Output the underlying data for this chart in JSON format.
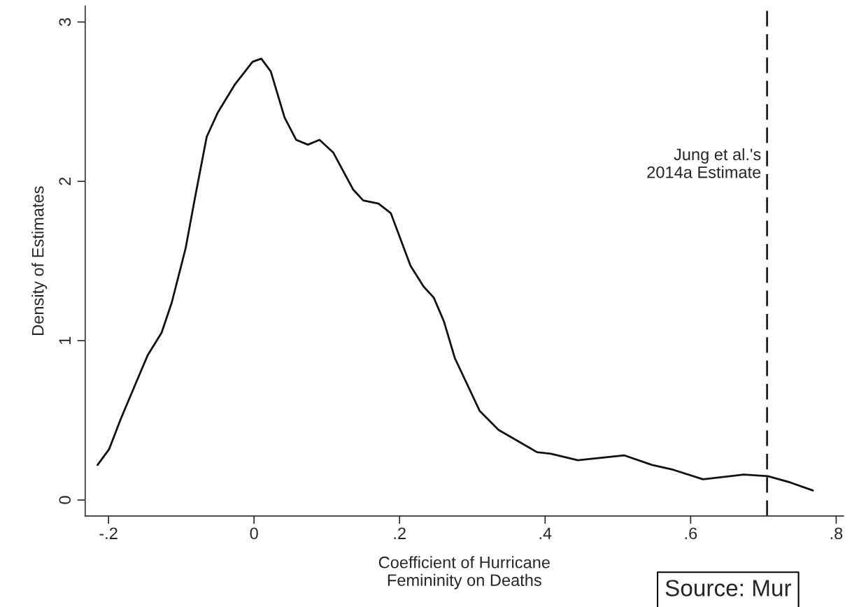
{
  "chart_data": {
    "type": "line",
    "xlabel": "Coefficient of Hurricane\nFemininity on Deaths",
    "ylabel": "Density of Estimates",
    "x": [
      -0.215,
      -0.199,
      -0.183,
      -0.159,
      -0.146,
      -0.127,
      -0.113,
      -0.094,
      -0.081,
      -0.065,
      -0.05,
      -0.026,
      -0.002,
      0.01,
      0.023,
      0.042,
      0.058,
      0.074,
      0.09,
      0.109,
      0.136,
      0.15,
      0.171,
      0.188,
      0.215,
      0.233,
      0.247,
      0.261,
      0.276,
      0.31,
      0.336,
      0.389,
      0.408,
      0.445,
      0.509,
      0.547,
      0.576,
      0.617,
      0.673,
      0.706,
      0.737,
      0.768
    ],
    "series": [
      {
        "color": "#111111",
        "values": [
          0.22,
          0.32,
          0.51,
          0.77,
          0.91,
          1.05,
          1.24,
          1.58,
          1.9,
          2.28,
          2.43,
          2.61,
          2.75,
          2.77,
          2.69,
          2.4,
          2.26,
          2.23,
          2.26,
          2.18,
          1.95,
          1.88,
          1.86,
          1.8,
          1.47,
          1.34,
          1.27,
          1.12,
          0.89,
          0.56,
          0.44,
          0.3,
          0.29,
          0.25,
          0.28,
          0.22,
          0.19,
          0.13,
          0.16,
          0.15,
          0.11,
          0.06
        ]
      }
    ],
    "xlim": [
      -0.232,
      0.81
    ],
    "ylim": [
      -0.1,
      3.1
    ],
    "xticks": [
      {
        "value": -0.2,
        "label": "-.2"
      },
      0,
      {
        "value": 0.2,
        "label": ".2"
      },
      {
        "value": 0.4,
        "label": ".4"
      },
      {
        "value": 0.6,
        "label": ".6"
      },
      {
        "value": 0.8,
        "label": ".8"
      }
    ],
    "yticks": [
      0,
      1,
      2,
      3
    ],
    "ref_lines": [
      {
        "axis": "x",
        "value": 0.705,
        "label": "Jung et al.'s\n2014a Estimate",
        "color": "#222222",
        "line_style": "dashed"
      }
    ],
    "annotations": [
      "Source: Mur"
    ],
    "grid": false,
    "legend": false,
    "marker": "none",
    "line_style": "solid"
  }
}
